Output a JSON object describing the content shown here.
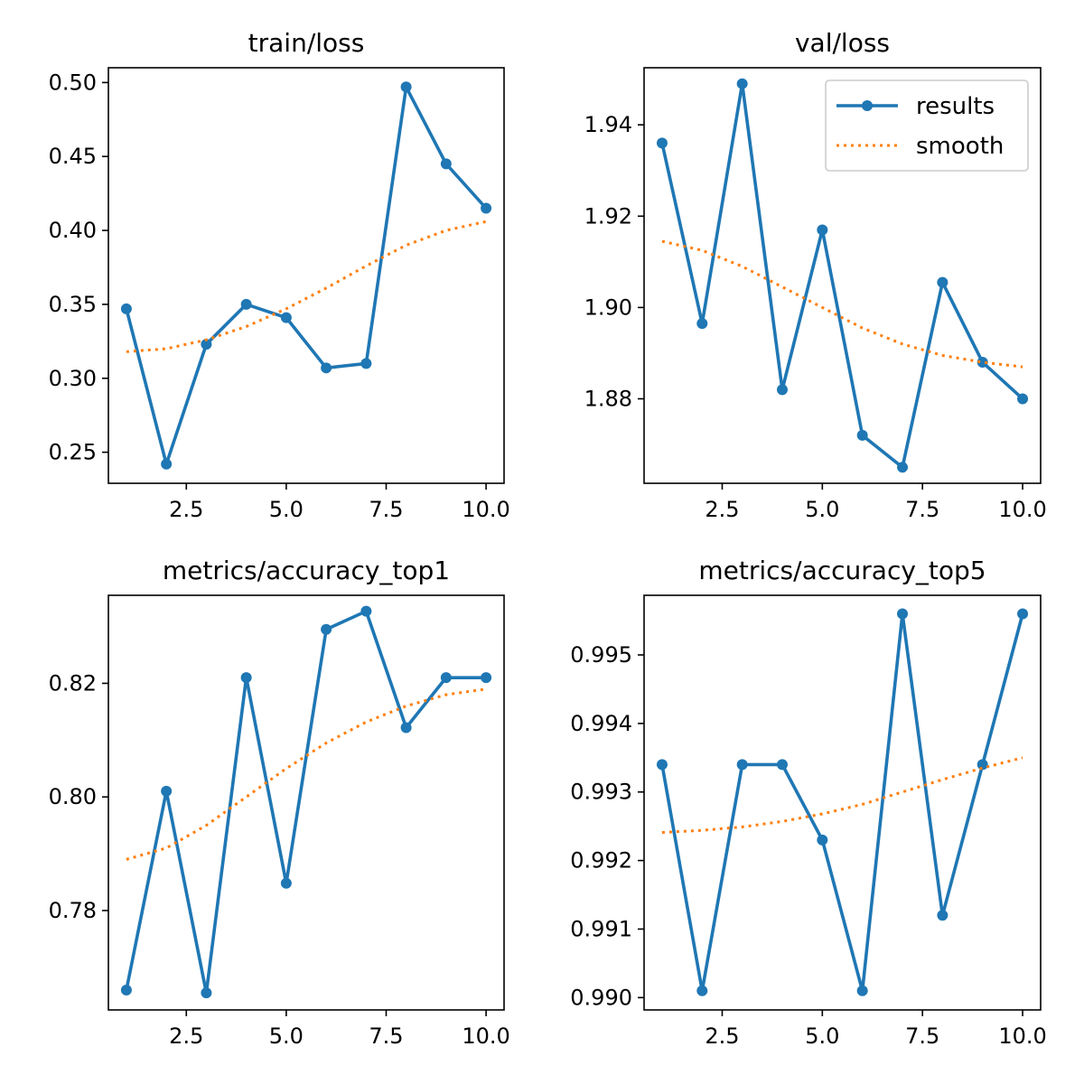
{
  "colors": {
    "results": "#1f77b4",
    "smooth": "#ff7f0e",
    "axes": "#000000",
    "legend_border": "#cccccc"
  },
  "legend": {
    "location": "upper-right",
    "panel": 1,
    "entries": [
      "results",
      "smooth"
    ]
  },
  "chart_data": [
    {
      "type": "line",
      "title": "train/loss",
      "xlabel": "",
      "ylabel": "",
      "grid": false,
      "x": [
        1,
        2,
        3,
        4,
        5,
        6,
        7,
        8,
        9,
        10
      ],
      "xlim": [
        0.55,
        10.45
      ],
      "ylim": [
        0.229,
        0.51
      ],
      "xticks": [
        2.5,
        5.0,
        7.5,
        10.0
      ],
      "xtick_labels": [
        "2.5",
        "5.0",
        "7.5",
        "10.0"
      ],
      "yticks": [
        0.25,
        0.3,
        0.35,
        0.4,
        0.45,
        0.5
      ],
      "ytick_labels": [
        "0.25",
        "0.30",
        "0.35",
        "0.40",
        "0.45",
        "0.50"
      ],
      "series": [
        {
          "name": "results",
          "style": "solid-markers",
          "values": [
            0.347,
            0.242,
            0.323,
            0.35,
            0.341,
            0.307,
            0.31,
            0.497,
            0.445,
            0.415
          ]
        },
        {
          "name": "smooth",
          "style": "dotted",
          "values": [
            0.318,
            0.32,
            0.326,
            0.335,
            0.347,
            0.361,
            0.376,
            0.39,
            0.4,
            0.406
          ]
        }
      ]
    },
    {
      "type": "line",
      "title": "val/loss",
      "xlabel": "",
      "ylabel": "",
      "grid": false,
      "x": [
        1,
        2,
        3,
        4,
        5,
        6,
        7,
        8,
        9,
        10
      ],
      "xlim": [
        0.55,
        10.45
      ],
      "ylim": [
        1.8615,
        1.9525
      ],
      "xticks": [
        2.5,
        5.0,
        7.5,
        10.0
      ],
      "xtick_labels": [
        "2.5",
        "5.0",
        "7.5",
        "10.0"
      ],
      "yticks": [
        1.88,
        1.9,
        1.92,
        1.94
      ],
      "ytick_labels": [
        "1.88",
        "1.90",
        "1.92",
        "1.94"
      ],
      "series": [
        {
          "name": "results",
          "style": "solid-markers",
          "values": [
            1.936,
            1.8965,
            1.949,
            1.882,
            1.917,
            1.872,
            1.865,
            1.9055,
            1.888,
            1.88
          ]
        },
        {
          "name": "smooth",
          "style": "dotted",
          "values": [
            1.9145,
            1.9125,
            1.909,
            1.9045,
            1.9,
            1.8955,
            1.892,
            1.8895,
            1.888,
            1.887
          ]
        }
      ]
    },
    {
      "type": "line",
      "title": "metrics/accuracy_top1",
      "xlabel": "",
      "ylabel": "",
      "grid": false,
      "x": [
        1,
        2,
        3,
        4,
        5,
        6,
        7,
        8,
        9,
        10
      ],
      "xlim": [
        0.55,
        10.45
      ],
      "ylim": [
        0.7625,
        0.8355
      ],
      "xticks": [
        2.5,
        5.0,
        7.5,
        10.0
      ],
      "xtick_labels": [
        "2.5",
        "5.0",
        "7.5",
        "10.0"
      ],
      "yticks": [
        0.78,
        0.8,
        0.82
      ],
      "ytick_labels": [
        "0.78",
        "0.80",
        "0.82"
      ],
      "series": [
        {
          "name": "results",
          "style": "solid-markers",
          "values": [
            0.766,
            0.801,
            0.7655,
            0.821,
            0.7848,
            0.8295,
            0.8327,
            0.8122,
            0.821,
            0.821
          ]
        },
        {
          "name": "smooth",
          "style": "dotted",
          "values": [
            0.789,
            0.791,
            0.795,
            0.8,
            0.805,
            0.8095,
            0.8132,
            0.816,
            0.818,
            0.819
          ]
        }
      ]
    },
    {
      "type": "line",
      "title": "metrics/accuracy_top5",
      "xlabel": "",
      "ylabel": "",
      "grid": false,
      "x": [
        1,
        2,
        3,
        4,
        5,
        6,
        7,
        8,
        9,
        10
      ],
      "xlim": [
        0.55,
        10.45
      ],
      "ylim": [
        0.98982,
        0.99587
      ],
      "xticks": [
        2.5,
        5.0,
        7.5,
        10.0
      ],
      "xtick_labels": [
        "2.5",
        "5.0",
        "7.5",
        "10.0"
      ],
      "yticks": [
        0.99,
        0.991,
        0.992,
        0.993,
        0.994,
        0.995
      ],
      "ytick_labels": [
        "0.990",
        "0.991",
        "0.992",
        "0.993",
        "0.994",
        "0.995"
      ],
      "series": [
        {
          "name": "results",
          "style": "solid-markers",
          "values": [
            0.9934,
            0.9901,
            0.9934,
            0.9934,
            0.9923,
            0.9901,
            0.9956,
            0.9912,
            0.9934,
            0.9956
          ]
        },
        {
          "name": "smooth",
          "style": "dotted",
          "values": [
            0.99241,
            0.99244,
            0.99249,
            0.99257,
            0.99268,
            0.99282,
            0.993,
            0.99318,
            0.99335,
            0.9935
          ]
        }
      ]
    }
  ]
}
